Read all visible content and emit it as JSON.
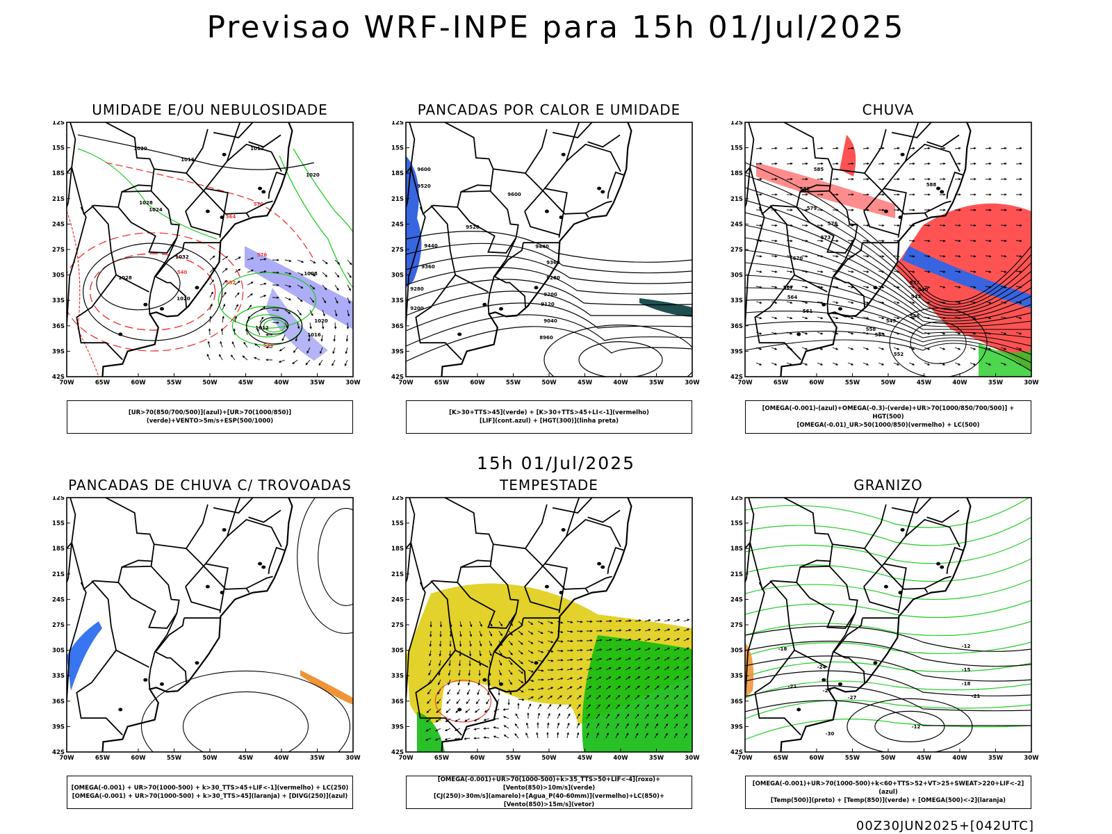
{
  "main_title": "Previsao WRF-INPE  para 15h 01/Jul/2025",
  "row_date": "15h 01/Jul/2025",
  "footer": "00Z30JUN2025+[042UTC]",
  "axes": {
    "lat_labels": [
      "12S",
      "15S",
      "18S",
      "21S",
      "24S",
      "27S",
      "30S",
      "33S",
      "36S",
      "39S",
      "42S"
    ],
    "lon_labels": [
      "70W",
      "65W",
      "60W",
      "55W",
      "50W",
      "45W",
      "40W",
      "35W",
      "30W"
    ]
  },
  "panels": [
    {
      "title": "UMIDADE E/OU NEBULOSIDADE",
      "legend": [
        "[UR>70(850/700/500)](azul)+[UR>70(1000/850)](verde)+VENTO>5m/s+ESP(500/1000)"
      ],
      "contour_labels": [
        "1020",
        "1016",
        "1012",
        "1020",
        "1024",
        "1028",
        "1032",
        "1028",
        "1020",
        "1008",
        "1012",
        "1016",
        "1020",
        "540",
        "534",
        "552",
        "564",
        "570",
        "576"
      ]
    },
    {
      "title": "PANCADAS POR CALOR E UMIDADE",
      "legend": [
        "[K>30+TTS>45](verde) + [K>30+TTS>45+LI<-1](vermelho)",
        "[LIF](cont.azul) + [HGT(300)](linha preta)"
      ],
      "contour_labels": [
        "9600",
        "9520",
        "9440",
        "9360",
        "9280",
        "9200",
        "9600",
        "9520",
        "9440",
        "9360",
        "9280",
        "9200",
        "9120",
        "9040",
        "8960"
      ]
    },
    {
      "title": "CHUVA",
      "legend": [
        "[OMEGA(-0.001)-(azul)+OMEGA(-0.3)-(verde)+UR>70(1000/850/700/500)] + HGT(500)",
        "[OMEGA(-0.01)_UR>50(1000/850)(vermelho) + LC(500)"
      ],
      "contour_labels": [
        "585",
        "582",
        "579",
        "576",
        "573",
        "570",
        "567",
        "564",
        "561",
        "558",
        "555",
        "552",
        "549",
        "546",
        "543",
        "540",
        "537",
        "588"
      ]
    },
    {
      "title": "PANCADAS DE CHUVA C/ TROVOADAS",
      "legend": [
        "[OMEGA(-0.001) + UR>70(1000-500) + k>30_TTS>45+LIF<-1](vermelho) + LC(250)",
        "[OMEGA(-0.001) + UR>70(1000-500) + k>30_TTS>45](laranja) + [DIVG(250)](azul)"
      ],
      "contour_labels": []
    },
    {
      "title": "TEMPESTADE",
      "legend": [
        "[OMEGA(-0.001)+UR>70(1000-500)+k>35_TTS>50+LIF<-4](roxo)+[Vento(850)>10m/s](verde)",
        "[CJ(250)>30m/s](amarelo)+[Agua_P(40-60mm)](vermelho)+LC(850)+[Vento(850)>15m/s](vetor)"
      ],
      "contour_labels": []
    },
    {
      "title": "GRANIZO",
      "legend": [
        "[OMEGA(-0.001)+UR>70(1000-500)+k<60+TTS>52+VT>25+SWEAT>220+LIF<-2](azul)",
        "[Temp(500)](preto) + [Temp(850)](verde) + [OMEGA(500)<-2](laranja)"
      ],
      "contour_labels": [
        "-12",
        "-15",
        "-18",
        "-18",
        "-21",
        "-21",
        "-24",
        "-27",
        "-27",
        "-30",
        "-12"
      ]
    }
  ],
  "colors": {
    "humid_blue": "#6a6af0",
    "humid_green": "#22cc22",
    "pressure_red": "#ee3333",
    "rain_red": "#ff4040",
    "rain_blue": "#2266ee",
    "lif_blue": "#2255dd",
    "jet_yellow": "#e0d020",
    "wind_green": "#11bb11",
    "orange": "#ee8822",
    "teal": "#1f4f4f"
  }
}
